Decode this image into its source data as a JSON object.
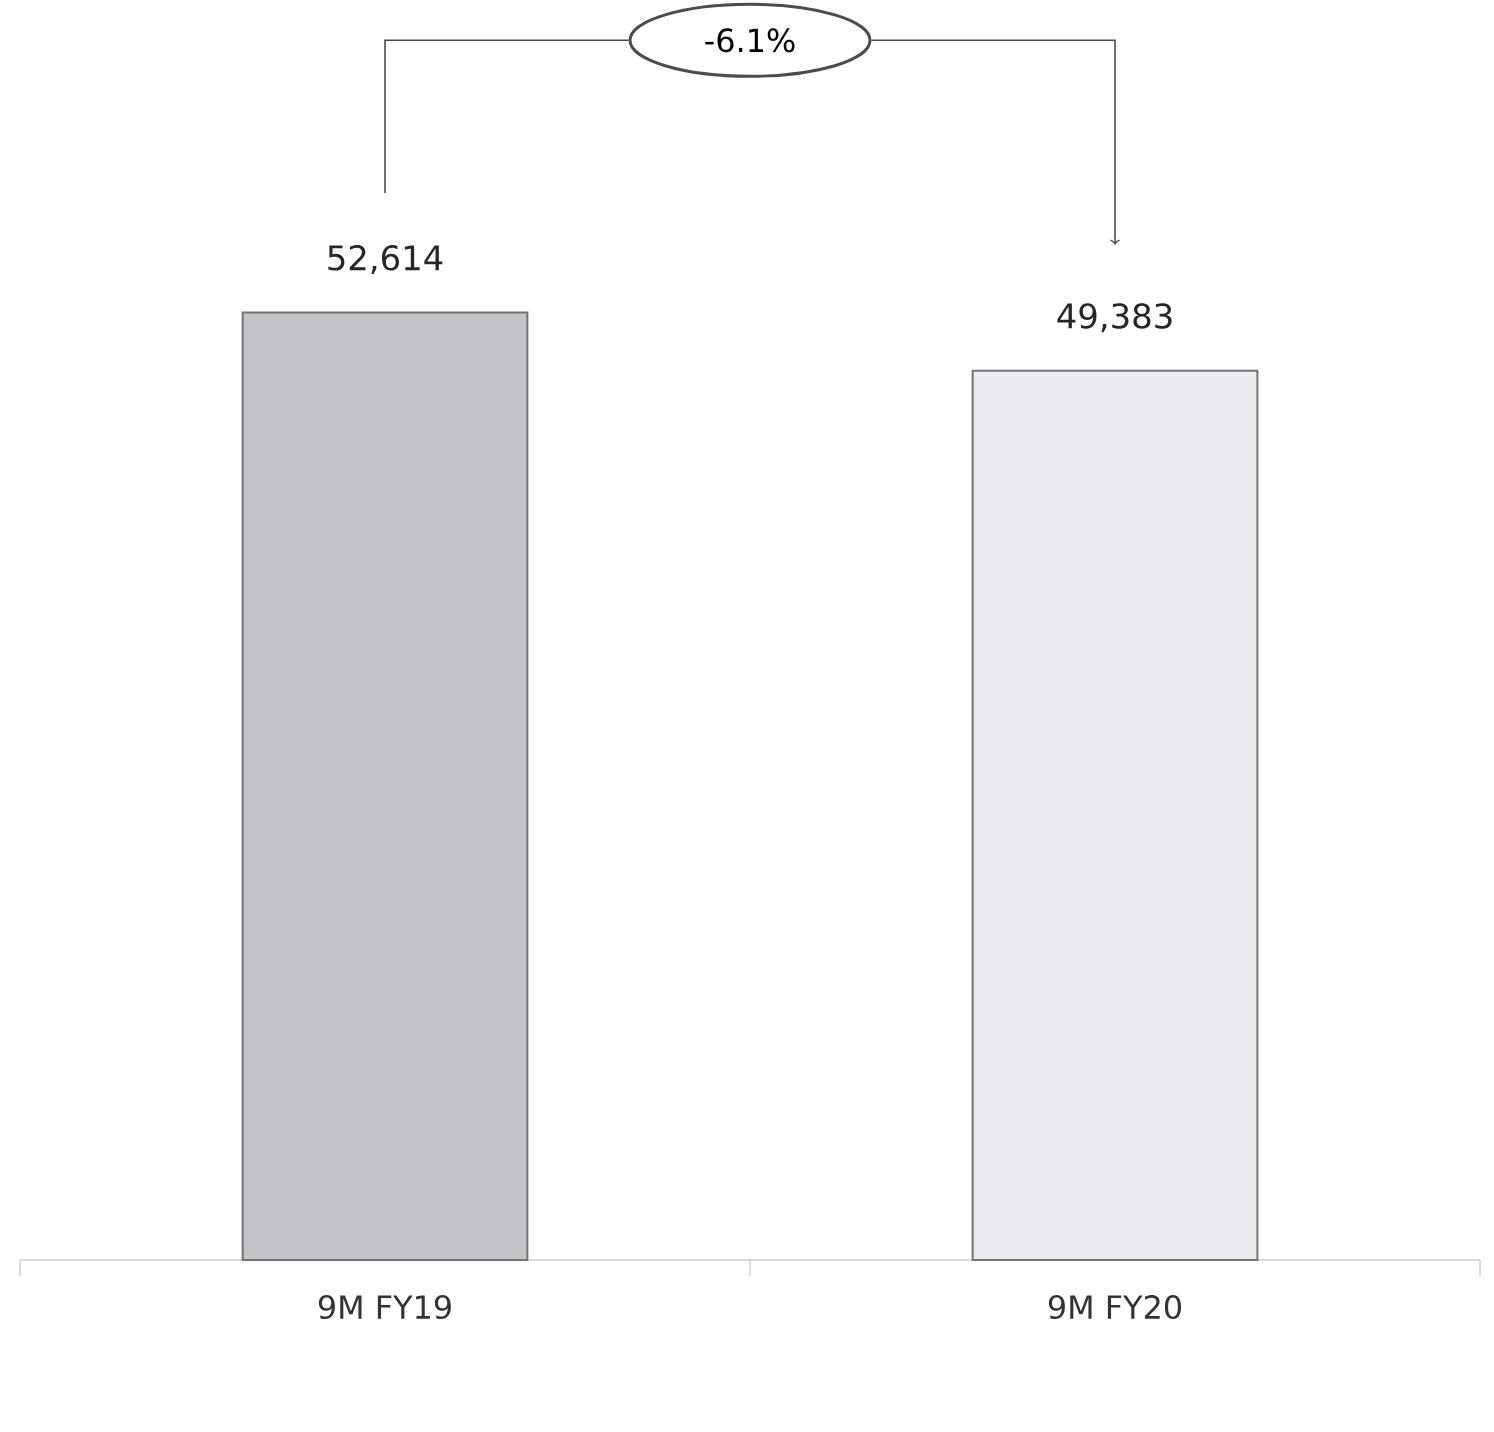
{
  "chart_data": {
    "type": "bar",
    "categories": [
      "9M FY19",
      "9M FY20"
    ],
    "values": [
      52614,
      49383
    ],
    "colors": [
      "#c4c4c8",
      "#ececf0"
    ],
    "value_labels": [
      "52,614",
      "49,383"
    ],
    "tick_labels": "x",
    "annotations": [
      "-6.1%"
    ]
  }
}
